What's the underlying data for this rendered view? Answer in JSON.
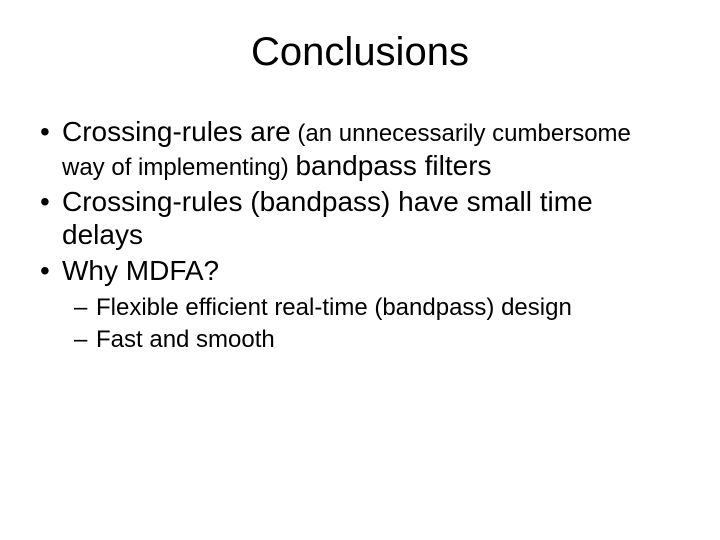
{
  "title": "Conclusions",
  "b1_a": "Crossing-rules are",
  "b1_b": " (an unnecessarily cumbersome way of implementing) ",
  "b1_c": "bandpass filters",
  "b2": "Crossing-rules (bandpass) have small time delays",
  "b3": "Why MDFA?",
  "s1": "Flexible efficient real-time (bandpass) design",
  "s2": "Fast and smooth",
  "colors": {
    "bg": "#ffffff",
    "text": "#000000"
  },
  "fontsize": {
    "title": 40,
    "body": 28,
    "small": 24,
    "sub": 24
  }
}
